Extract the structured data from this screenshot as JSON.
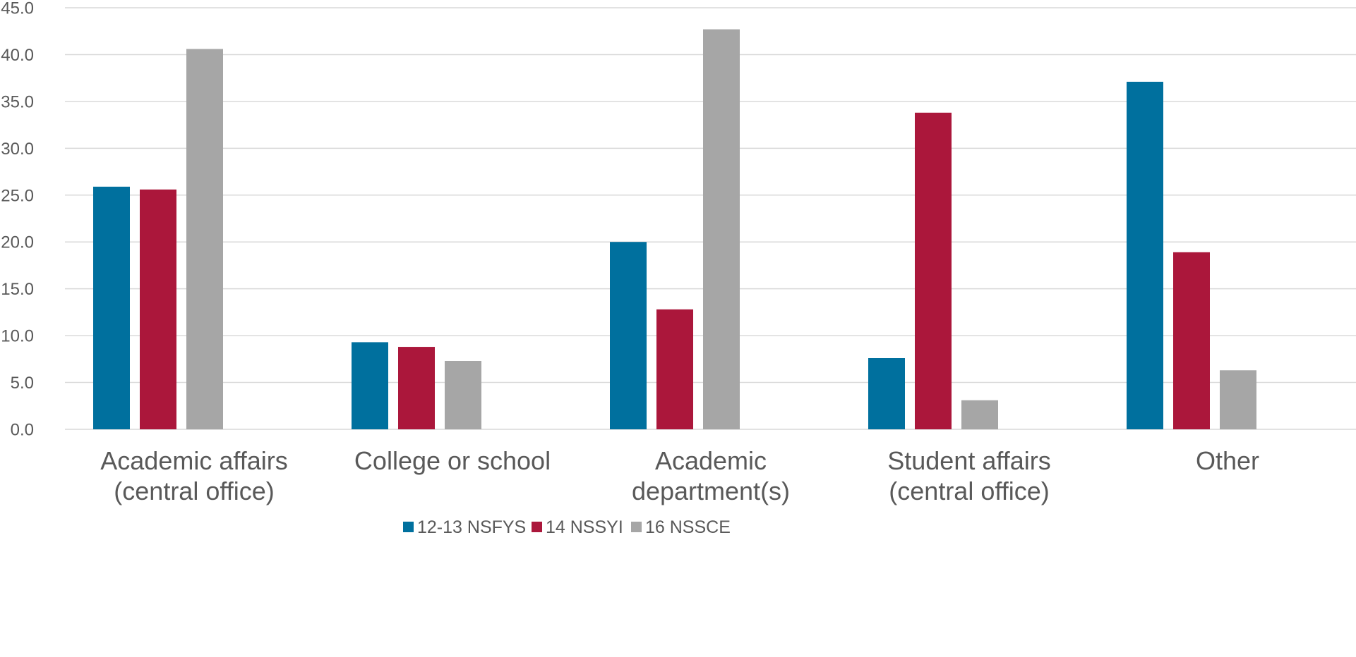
{
  "chart_data": {
    "type": "bar",
    "title": "",
    "xlabel": "",
    "ylabel": "",
    "ylim": [
      0,
      45
    ],
    "y_ticks": [
      "0.0",
      "5.0",
      "10.0",
      "15.0",
      "20.0",
      "25.0",
      "30.0",
      "35.0",
      "40.0",
      "45.0"
    ],
    "grid": true,
    "legend_position": "bottom",
    "categories": [
      [
        "Academic affairs",
        "(central office)"
      ],
      [
        "College or school"
      ],
      [
        "Academic",
        "department(s)"
      ],
      [
        "Student affairs",
        "(central office)"
      ],
      [
        "Other"
      ]
    ],
    "series": [
      {
        "name": "12-13 NSFYS",
        "color": "#00709e",
        "values": [
          25.9,
          9.3,
          20.0,
          7.6,
          37.1
        ]
      },
      {
        "name": "14 NSSYI",
        "color": "#ab173b",
        "values": [
          25.6,
          8.8,
          12.8,
          33.8,
          18.9
        ]
      },
      {
        "name": "16 NSSCE",
        "color": "#a6a6a6",
        "values": [
          40.6,
          7.3,
          42.7,
          3.1,
          6.3
        ]
      }
    ]
  }
}
